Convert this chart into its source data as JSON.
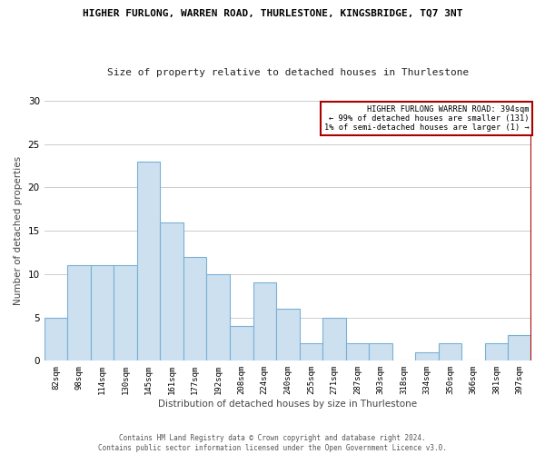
{
  "title": "HIGHER FURLONG, WARREN ROAD, THURLESTONE, KINGSBRIDGE, TQ7 3NT",
  "subtitle": "Size of property relative to detached houses in Thurlestone",
  "xlabel": "Distribution of detached houses by size in Thurlestone",
  "ylabel": "Number of detached properties",
  "categories": [
    "82sqm",
    "98sqm",
    "114sqm",
    "130sqm",
    "145sqm",
    "161sqm",
    "177sqm",
    "192sqm",
    "208sqm",
    "224sqm",
    "240sqm",
    "255sqm",
    "271sqm",
    "287sqm",
    "303sqm",
    "318sqm",
    "334sqm",
    "350sqm",
    "366sqm",
    "381sqm",
    "397sqm"
  ],
  "values": [
    5,
    11,
    11,
    11,
    23,
    16,
    12,
    10,
    4,
    9,
    6,
    2,
    5,
    2,
    2,
    0,
    1,
    2,
    0,
    2,
    3
  ],
  "bar_color": "#cce0f0",
  "bar_edge_color": "#7ab0d4",
  "property_line_color": "#aa0000",
  "ylim": [
    0,
    30
  ],
  "yticks": [
    0,
    5,
    10,
    15,
    20,
    25,
    30
  ],
  "annotation_text_line1": "HIGHER FURLONG WARREN ROAD: 394sqm",
  "annotation_text_line2": "← 99% of detached houses are smaller (131)",
  "annotation_text_line3": "1% of semi-detached houses are larger (1) →",
  "footer": "Contains HM Land Registry data © Crown copyright and database right 2024.\nContains public sector information licensed under the Open Government Licence v3.0.",
  "background_color": "#ffffff",
  "grid_color": "#cccccc"
}
